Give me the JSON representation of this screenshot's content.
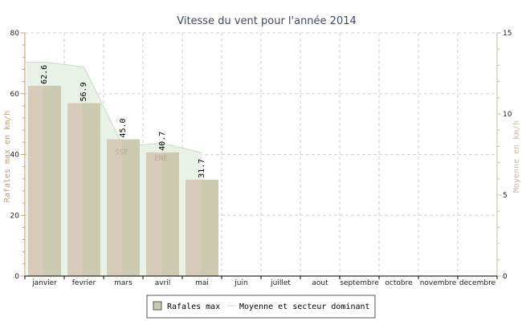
{
  "chart_data": {
    "type": "bar",
    "title": "Vitesse du vent pour l'année 2014",
    "ylabel": "Rafales max en km/h",
    "y2label": "Moyenne en km/h",
    "ylim": [
      0,
      80
    ],
    "y2lim": [
      0,
      15
    ],
    "yticks": [
      0,
      20,
      40,
      60,
      80
    ],
    "y2ticks": [
      0,
      5,
      10,
      15
    ],
    "grid": true,
    "legend_position": "bottom",
    "categories": [
      "janvier",
      "fevrier",
      "mars",
      "avril",
      "mai",
      "juin",
      "juillet",
      "aout",
      "septembre",
      "octobre",
      "novembre",
      "decembre"
    ],
    "series": [
      {
        "name": "Rafales max",
        "type": "bar",
        "axis": "left",
        "values": [
          62.6,
          56.9,
          45.0,
          40.7,
          31.7,
          null,
          null,
          null,
          null,
          null,
          null,
          null
        ],
        "labels": [
          "62.6",
          "56.9",
          "45.0",
          "40.7",
          "31.7"
        ]
      },
      {
        "name": "Moyenne et secteur dominant",
        "type": "area",
        "axis": "right",
        "values": [
          13.2,
          12.9,
          8.0,
          8.2,
          7.6,
          null,
          null,
          null,
          null,
          null,
          null,
          null
        ]
      }
    ],
    "sector_labels": [
      "",
      "",
      "SSE",
      "ENE",
      ""
    ],
    "colors": {
      "bar_fill": "#cccbb2",
      "bar_shadow": "#d8cbb9",
      "area_fill": "#e8f2e6",
      "area_stroke": "#c8dcc4",
      "left_axis": "#b8a26e",
      "right_axis": "#c8bca0",
      "grid": "#d0d0d0"
    }
  }
}
